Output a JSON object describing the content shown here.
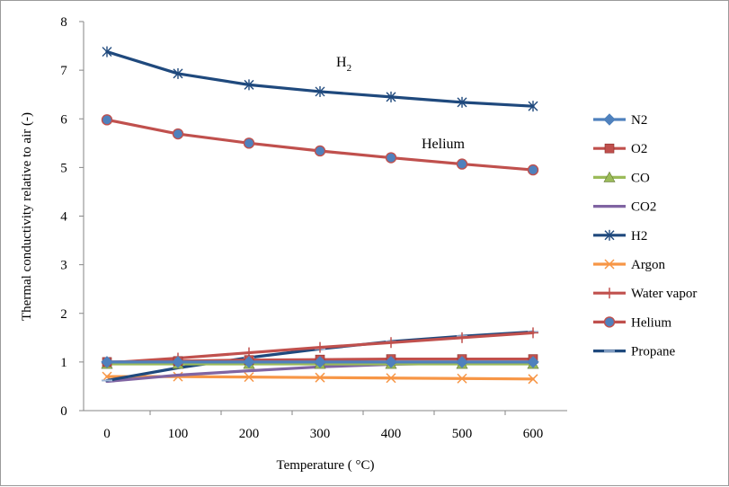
{
  "chart_data": {
    "type": "line",
    "x": [
      0,
      100,
      200,
      300,
      400,
      500,
      600
    ],
    "xlabel": "Temperature ( °C)",
    "ylabel": "Thermal conductivity relative to air (-)",
    "xlim": [
      0,
      600
    ],
    "ylim": [
      0,
      8
    ],
    "yticks": [
      0,
      1,
      2,
      3,
      4,
      5,
      6,
      7,
      8
    ],
    "grid": false,
    "legend_position": "right",
    "series": [
      {
        "name": "N2",
        "color": "#4f81bd",
        "marker": "diamond",
        "values": [
          1.0,
          1.0,
          1.0,
          1.0,
          1.0,
          1.0,
          1.0
        ]
      },
      {
        "name": "O2",
        "color": "#c0504d",
        "marker": "square",
        "values": [
          1.0,
          1.02,
          1.04,
          1.05,
          1.06,
          1.06,
          1.06
        ]
      },
      {
        "name": "CO",
        "color": "#9bbb59",
        "marker": "triangle",
        "values": [
          0.96,
          0.96,
          0.96,
          0.96,
          0.96,
          0.96,
          0.96
        ]
      },
      {
        "name": "CO2",
        "color": "#8064a2",
        "marker": "none",
        "values": [
          0.6,
          0.73,
          0.82,
          0.9,
          0.95,
          0.98,
          1.0
        ]
      },
      {
        "name": "H2",
        "color": "#1f497d",
        "marker": "asterisk",
        "values": [
          7.38,
          6.93,
          6.7,
          6.56,
          6.45,
          6.34,
          6.26
        ]
      },
      {
        "name": "Argon",
        "color": "#f79646",
        "marker": "x",
        "values": [
          0.7,
          0.7,
          0.69,
          0.68,
          0.67,
          0.66,
          0.65
        ]
      },
      {
        "name": "Water vapor",
        "color": "#c0504d",
        "marker": "plus",
        "values": [
          0.98,
          1.08,
          1.19,
          1.3,
          1.4,
          1.5,
          1.6
        ]
      },
      {
        "name": "Helium",
        "color": "#c0504d",
        "marker": "circle",
        "markerFill": "#4f81bd",
        "values": [
          5.98,
          5.69,
          5.5,
          5.34,
          5.2,
          5.07,
          4.95
        ]
      },
      {
        "name": "Propane",
        "color": "#1f497d",
        "marker": "dash",
        "values": [
          0.62,
          0.88,
          1.09,
          1.27,
          1.42,
          1.53,
          1.62
        ]
      }
    ],
    "annotations": [
      {
        "text": "H",
        "sub": "2"
      },
      {
        "text": "Helium"
      }
    ]
  }
}
